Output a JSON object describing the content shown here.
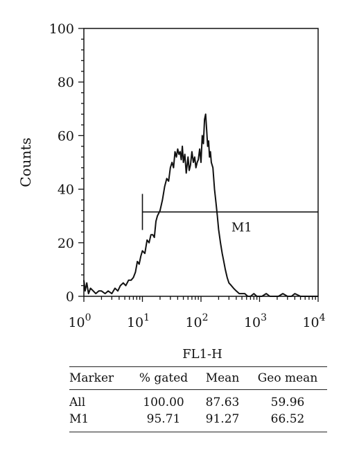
{
  "chart_data": {
    "type": "histogram",
    "ylabel": "Counts",
    "xlabel": "FL1-H",
    "x_scale": "log",
    "xlim": [
      1,
      10000
    ],
    "ylim": [
      0,
      100
    ],
    "yticks": [
      0,
      20,
      40,
      60,
      80,
      100
    ],
    "xtick_labels": [
      {
        "base": "10",
        "exp": "0"
      },
      {
        "base": "10",
        "exp": "1"
      },
      {
        "base": "10",
        "exp": "2"
      },
      {
        "base": "10",
        "exp": "3"
      },
      {
        "base": "10",
        "exp": "4"
      }
    ],
    "series": [
      {
        "x": [
          1.0,
          1.05,
          1.12,
          1.2,
          1.3,
          1.45,
          1.6,
          1.8,
          2.0,
          2.3,
          2.6,
          3.0,
          3.4,
          3.8,
          4.2,
          4.7,
          5.2,
          5.8,
          6.4,
          7.0,
          7.6,
          8.2,
          8.8,
          9.4,
          10,
          11,
          12,
          13,
          14,
          15,
          16,
          17,
          18,
          20,
          22,
          24,
          26,
          28,
          30,
          32,
          34,
          36,
          38,
          40,
          42,
          44,
          46,
          48,
          50,
          53,
          56,
          60,
          63,
          66,
          70,
          74,
          78,
          82,
          86,
          90,
          95,
          100,
          105,
          110,
          115,
          120,
          125,
          130,
          135,
          140,
          145,
          150,
          160,
          170,
          180,
          190,
          200,
          215,
          230,
          245,
          260,
          280,
          300,
          330,
          360,
          400,
          450,
          500,
          560,
          630,
          700,
          800,
          900,
          1000,
          1100,
          1300,
          1500,
          1800,
          2100,
          2500,
          3000,
          3500,
          4000,
          5000,
          6000,
          7000,
          8000,
          9000,
          10000
        ],
        "y": [
          6,
          2,
          5,
          1,
          3,
          2,
          1,
          2,
          2,
          1,
          2,
          1,
          3,
          2,
          4,
          5,
          4,
          6,
          6,
          7,
          9,
          13,
          12,
          15,
          17,
          16,
          21,
          20,
          23,
          23,
          22,
          28,
          30,
          32,
          36,
          41,
          44,
          43,
          48,
          50,
          48,
          54,
          52,
          55,
          53,
          54,
          51,
          56,
          50,
          53,
          46,
          52,
          47,
          49,
          54,
          50,
          52,
          48,
          50,
          51,
          55,
          50,
          60,
          57,
          66,
          68,
          62,
          56,
          58,
          52,
          54,
          50,
          48,
          40,
          35,
          30,
          25,
          20,
          16,
          13,
          10,
          7,
          5,
          4,
          3,
          2,
          1,
          1,
          1,
          0,
          0,
          1,
          0,
          0,
          0,
          1,
          0,
          0,
          0,
          1,
          0,
          0,
          1,
          0,
          0,
          0,
          0,
          0,
          0
        ]
      }
    ],
    "annotations": [
      {
        "label": "M1",
        "x_start": 10,
        "x_end": 10000,
        "y": 31.5
      }
    ]
  },
  "table": {
    "headers": [
      "Marker",
      "% gated",
      "Mean",
      "Geo mean"
    ],
    "rows": [
      [
        "All",
        "100.00",
        "87.63",
        "59.96"
      ],
      [
        "M1",
        "95.71",
        "91.27",
        "66.52"
      ]
    ]
  }
}
